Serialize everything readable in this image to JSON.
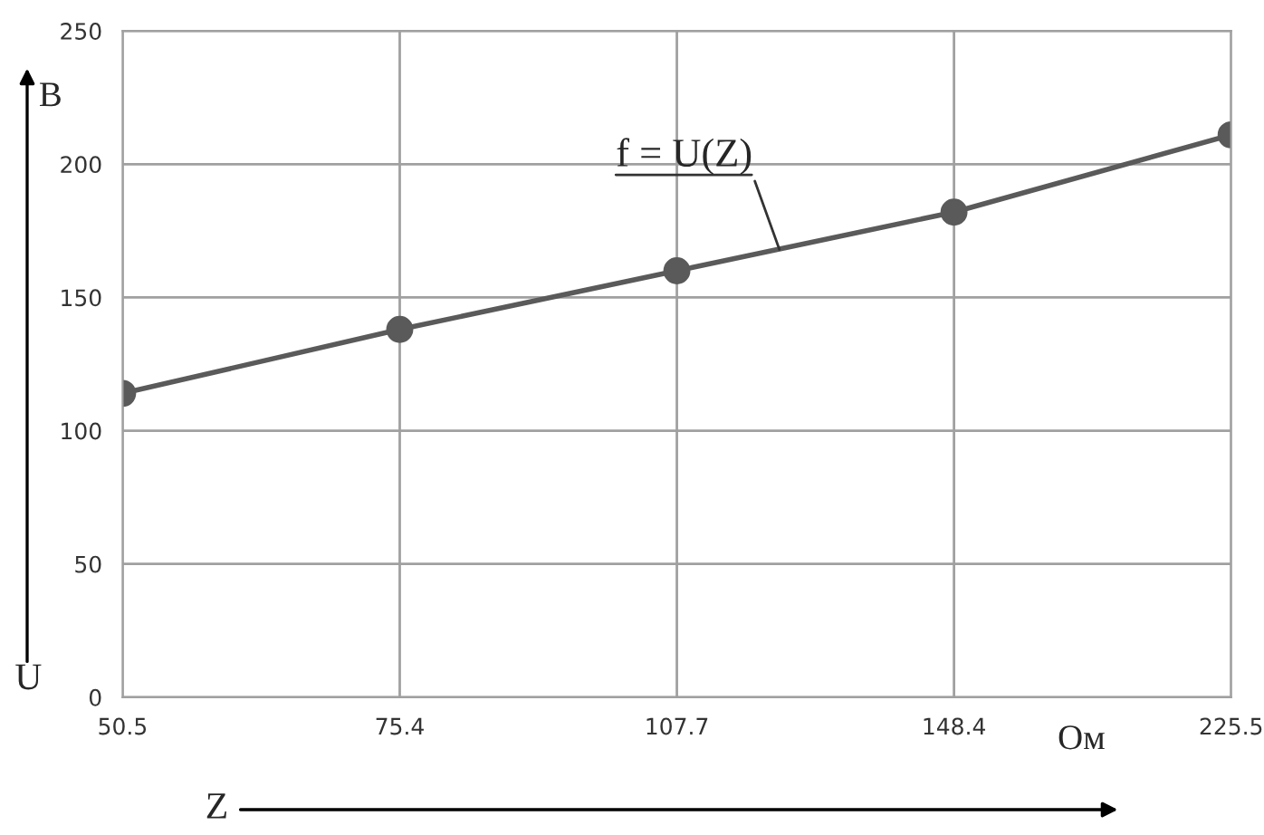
{
  "chart_data": {
    "type": "line",
    "categories": [
      "50.5",
      "75.4",
      "107.7",
      "148.4",
      "225.5"
    ],
    "series": [
      {
        "color": "#5a5a5a",
        "values": [
          114,
          138,
          160,
          182,
          211
        ]
      }
    ],
    "ylim": [
      0,
      250
    ],
    "yticks": [
      0,
      50,
      100,
      150,
      200,
      250
    ],
    "grid": true,
    "marker": "circle",
    "line_style": "solid",
    "xlabel": "Z",
    "ylabel": "U",
    "annotations": [
      {
        "text": "f = U(Z)",
        "y": 168
      },
      "В",
      "Ом"
    ]
  }
}
